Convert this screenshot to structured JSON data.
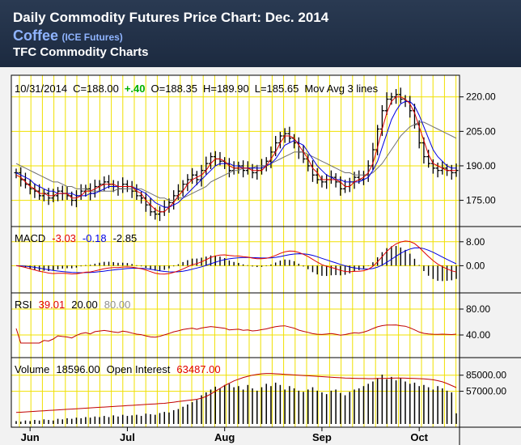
{
  "header": {
    "title": "Daily Commodity Futures Price Chart: Dec. 2014",
    "commodity": "Coffee",
    "exchange": "(ICE Futures)",
    "source": "TFC Commodity Charts"
  },
  "colors": {
    "grid": "#f0e000",
    "price_bar": "#000000",
    "ma_fast": "#e00000",
    "ma_mid": "#0000e0",
    "ma_slow": "#707070",
    "macd": "#e00000",
    "signal": "#0000e0",
    "rsi": "#c00000",
    "oi": "#c00000",
    "positive": "#00b000"
  },
  "chart_data": {
    "type": "line",
    "x_labels": [
      "Jun",
      "Jul",
      "Aug",
      "Sep",
      "Oct"
    ],
    "price_panel": {
      "info": {
        "date": "10/31/2014",
        "close_label": "C=188.00",
        "change": "+.40",
        "open_label": "O=188.35",
        "high_label": "H=189.90",
        "low_label": "L=185.65",
        "ma_label": "Mov Avg 3 lines"
      },
      "ylim": [
        165,
        228
      ],
      "ticks": [
        "220.00",
        "205.00",
        "190.00",
        "175.00"
      ],
      "tick_values": [
        220,
        205,
        190,
        175
      ],
      "closes": [
        187,
        184,
        182,
        180,
        179,
        177,
        178,
        176,
        177,
        179,
        178,
        177,
        175,
        177,
        179,
        180,
        178,
        181,
        182,
        183,
        182,
        181,
        180,
        182,
        181,
        179,
        177,
        176,
        173,
        170,
        169,
        170,
        172,
        174,
        177,
        179,
        182,
        184,
        186,
        184,
        188,
        191,
        194,
        193,
        192,
        191,
        188,
        189,
        190,
        188,
        189,
        187,
        188,
        190,
        192,
        196,
        200,
        203,
        204,
        202,
        200,
        196,
        193,
        190,
        186,
        184,
        183,
        184,
        185,
        183,
        180,
        181,
        183,
        185,
        184,
        186,
        190,
        197,
        206,
        214,
        219,
        220,
        221,
        219,
        218,
        214,
        208,
        200,
        194,
        191,
        189,
        188,
        189,
        188,
        187,
        188
      ],
      "ma_fast": [
        186,
        185,
        183,
        181,
        180,
        178,
        178,
        177,
        177,
        178,
        178,
        178,
        176,
        176,
        177,
        179,
        179,
        180,
        181,
        182,
        182,
        182,
        181,
        181,
        181,
        181,
        179,
        178,
        175,
        173,
        171,
        170,
        170,
        172,
        174,
        177,
        179,
        182,
        184,
        185,
        186,
        188,
        191,
        193,
        193,
        192,
        190,
        189,
        189,
        189,
        189,
        188,
        188,
        188,
        190,
        193,
        196,
        200,
        203,
        203,
        202,
        199,
        196,
        193,
        189,
        187,
        184,
        184,
        184,
        184,
        183,
        181,
        181,
        183,
        184,
        185,
        187,
        191,
        198,
        206,
        213,
        218,
        220,
        220,
        219,
        217,
        213,
        207,
        201,
        195,
        191,
        190,
        189,
        188,
        188,
        188
      ],
      "ma_mid": [
        187,
        186,
        185,
        184,
        182,
        181,
        180,
        179,
        179,
        178,
        178,
        178,
        178,
        177,
        177,
        177,
        178,
        178,
        179,
        180,
        181,
        181,
        181,
        181,
        181,
        181,
        180,
        179,
        178,
        176,
        174,
        173,
        172,
        172,
        173,
        174,
        176,
        178,
        180,
        182,
        184,
        186,
        188,
        190,
        191,
        191,
        191,
        190,
        190,
        189,
        189,
        189,
        189,
        189,
        190,
        191,
        193,
        196,
        199,
        200,
        201,
        200,
        199,
        196,
        193,
        190,
        188,
        186,
        185,
        184,
        184,
        183,
        183,
        183,
        183,
        184,
        185,
        188,
        192,
        198,
        204,
        210,
        214,
        217,
        218,
        218,
        216,
        212,
        207,
        202,
        197,
        194,
        192,
        190,
        189,
        189
      ],
      "ma_slow": [
        191,
        190,
        189,
        188,
        187,
        186,
        185,
        184,
        183,
        183,
        182,
        181,
        181,
        180,
        180,
        180,
        179,
        179,
        179,
        179,
        179,
        179,
        180,
        180,
        180,
        180,
        180,
        180,
        179,
        178,
        177,
        176,
        176,
        175,
        175,
        176,
        176,
        177,
        178,
        179,
        180,
        181,
        183,
        184,
        185,
        186,
        187,
        188,
        188,
        189,
        189,
        189,
        190,
        190,
        190,
        191,
        192,
        193,
        194,
        195,
        196,
        196,
        196,
        195,
        194,
        193,
        192,
        191,
        190,
        189,
        188,
        187,
        187,
        186,
        186,
        186,
        186,
        187,
        189,
        191,
        194,
        197,
        200,
        203,
        205,
        207,
        208,
        209,
        209,
        208,
        207,
        206,
        205,
        204,
        203,
        202
      ]
    },
    "macd_panel": {
      "label": "MACD",
      "macd_value": "-3.03",
      "signal_value": "-0.18",
      "hist_value": "-2.85",
      "ylim": [
        -8,
        12
      ],
      "ticks": [
        "8.00",
        "0.00"
      ],
      "tick_values": [
        8,
        0
      ]
    },
    "rsi_panel": {
      "label": "RSI",
      "value": "39.01",
      "lower": "20.00",
      "upper": "80.00",
      "ylim": [
        10,
        100
      ],
      "ticks": [
        "80.00",
        "40.00"
      ],
      "tick_values": [
        80,
        40
      ]
    },
    "volume_panel": {
      "label": "Volume",
      "volume_value": "18596.00",
      "oi_label": "Open Interest",
      "oi_value": "63487.00",
      "ylim": [
        0,
        110000
      ],
      "ticks": [
        "85000.00",
        "57000.00"
      ],
      "tick_values": [
        85000,
        57000
      ],
      "volume": [
        5000,
        4000,
        6000,
        5000,
        7000,
        6000,
        8000,
        7000,
        6000,
        9000,
        8000,
        10000,
        9000,
        11000,
        10000,
        12000,
        11000,
        13000,
        12000,
        14000,
        12000,
        15000,
        13000,
        16000,
        14000,
        15000,
        16000,
        14000,
        18000,
        17000,
        16000,
        19000,
        21000,
        20000,
        24000,
        26000,
        30000,
        34000,
        38000,
        42000,
        50000,
        55000,
        60000,
        65000,
        62000,
        68000,
        70000,
        64000,
        66000,
        60000,
        68000,
        62000,
        58000,
        64000,
        70000,
        66000,
        72000,
        68000,
        60000,
        66000,
        62000,
        58000,
        56000,
        60000,
        64000,
        58000,
        55000,
        52000,
        58000,
        60000,
        54000,
        50000,
        56000,
        60000,
        62000,
        66000,
        70000,
        74000,
        80000,
        86000,
        78000,
        82000,
        76000,
        80000,
        74000,
        70000,
        72000,
        66000,
        68000,
        64000,
        60000,
        66000,
        62000,
        58000,
        55000,
        18596
      ],
      "open_interest": [
        20000,
        20500,
        21000,
        21500,
        22000,
        22500,
        23000,
        23500,
        24000,
        24500,
        25000,
        25500,
        26000,
        26500,
        27000,
        27500,
        28000,
        28500,
        29000,
        29500,
        30000,
        30500,
        31000,
        31500,
        32000,
        32500,
        33000,
        33500,
        34000,
        34500,
        35000,
        35500,
        36000,
        37000,
        38000,
        39000,
        40000,
        41000,
        42000,
        43000,
        45000,
        48000,
        52000,
        57000,
        62000,
        67000,
        71000,
        75000,
        78000,
        81000,
        83000,
        85000,
        86500,
        87500,
        88000,
        88000,
        87500,
        87000,
        86500,
        86000,
        85500,
        85000,
        84500,
        84000,
        83500,
        83000,
        82500,
        82000,
        81500,
        81000,
        80500,
        80000,
        79800,
        79600,
        79400,
        79200,
        79000,
        79000,
        79200,
        79400,
        79600,
        79800,
        80000,
        80000,
        79800,
        79500,
        79200,
        79000,
        78500,
        78000,
        77000,
        75500,
        73500,
        70500,
        67000,
        63487
      ]
    }
  }
}
